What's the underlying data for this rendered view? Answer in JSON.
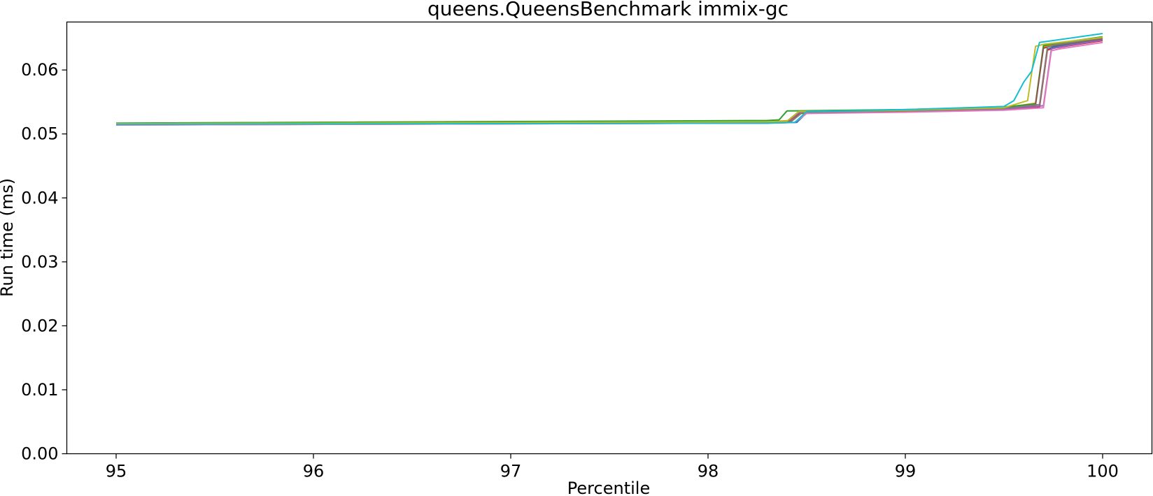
{
  "chart_data": {
    "type": "line",
    "title": "queens.QueensBenchmark immix-gc",
    "xlabel": "Percentile",
    "ylabel": "Run time (ms)",
    "xlim": [
      94.75,
      100.25
    ],
    "ylim": [
      0.0,
      0.0675
    ],
    "x_ticks": [
      95,
      96,
      97,
      98,
      99,
      100
    ],
    "x_tick_labels": [
      "95",
      "96",
      "97",
      "98",
      "99",
      "100"
    ],
    "y_ticks": [
      0.0,
      0.01,
      0.02,
      0.03,
      0.04,
      0.05,
      0.06
    ],
    "y_tick_labels": [
      "0.00",
      "0.01",
      "0.02",
      "0.03",
      "0.04",
      "0.05",
      "0.06"
    ],
    "grid": false,
    "legend": "none",
    "series": [
      {
        "color": "#1f77b4",
        "x": [
          95,
          98.3,
          98.45,
          98.5,
          99,
          99.5,
          99.68,
          99.72,
          99.75,
          100
        ],
        "y": [
          0.0515,
          0.0517,
          0.0518,
          0.0533,
          0.0536,
          0.0539,
          0.0543,
          0.0632,
          0.0636,
          0.0648
        ]
      },
      {
        "color": "#ff7f0e",
        "x": [
          95,
          98.3,
          98.42,
          98.48,
          99,
          99.5,
          99.66,
          99.7,
          99.75,
          100
        ],
        "y": [
          0.0516,
          0.0519,
          0.0521,
          0.0534,
          0.0537,
          0.0541,
          0.0548,
          0.0636,
          0.0639,
          0.0651
        ]
      },
      {
        "color": "#2ca02c",
        "x": [
          95,
          98.3,
          98.36,
          98.4,
          99,
          99.5,
          99.66,
          99.7,
          99.75,
          100
        ],
        "y": [
          0.0517,
          0.0521,
          0.0522,
          0.0536,
          0.0538,
          0.0542,
          0.0547,
          0.0638,
          0.0641,
          0.0652
        ]
      },
      {
        "color": "#d62728",
        "x": [
          95,
          98.3,
          98.4,
          98.46,
          99,
          99.5,
          99.68,
          99.72,
          99.75,
          100
        ],
        "y": [
          0.0514,
          0.0517,
          0.0519,
          0.0532,
          0.0535,
          0.0538,
          0.0542,
          0.0631,
          0.0634,
          0.0646
        ]
      },
      {
        "color": "#9467bd",
        "x": [
          95,
          98.3,
          98.4,
          98.46,
          99,
          99.5,
          99.7,
          99.74,
          99.78,
          100
        ],
        "y": [
          0.0515,
          0.0518,
          0.0519,
          0.0533,
          0.0535,
          0.0539,
          0.0544,
          0.0633,
          0.0636,
          0.0647
        ]
      },
      {
        "color": "#8c564b",
        "x": [
          95,
          98.3,
          98.42,
          98.48,
          99,
          99.5,
          99.66,
          99.7,
          99.75,
          100
        ],
        "y": [
          0.0516,
          0.0518,
          0.052,
          0.0534,
          0.0536,
          0.054,
          0.0545,
          0.0634,
          0.0638,
          0.0649
        ]
      },
      {
        "color": "#e377c2",
        "x": [
          95,
          98.3,
          98.44,
          98.5,
          99,
          99.5,
          99.7,
          99.74,
          99.78,
          100
        ],
        "y": [
          0.0514,
          0.0517,
          0.0518,
          0.0532,
          0.0534,
          0.0537,
          0.0541,
          0.063,
          0.0633,
          0.0643
        ]
      },
      {
        "color": "#7f7f7f",
        "x": [
          95,
          98.3,
          98.42,
          98.48,
          99,
          99.5,
          99.68,
          99.72,
          99.75,
          100
        ],
        "y": [
          0.0516,
          0.0518,
          0.0519,
          0.0534,
          0.0536,
          0.054,
          0.0546,
          0.0635,
          0.0639,
          0.065
        ]
      },
      {
        "color": "#bcbd22",
        "x": [
          95,
          98.3,
          98.4,
          98.46,
          99,
          99.5,
          99.62,
          99.66,
          99.7,
          100
        ],
        "y": [
          0.0516,
          0.0519,
          0.052,
          0.0535,
          0.0537,
          0.0541,
          0.0552,
          0.0637,
          0.064,
          0.0651
        ]
      },
      {
        "color": "#17becf",
        "x": [
          95,
          98.3,
          98.44,
          98.5,
          99,
          99.5,
          99.55,
          99.6,
          99.64,
          99.68,
          100
        ],
        "y": [
          0.0515,
          0.0517,
          0.0518,
          0.0535,
          0.0538,
          0.0543,
          0.0552,
          0.0581,
          0.0598,
          0.0643,
          0.0657
        ]
      }
    ]
  }
}
